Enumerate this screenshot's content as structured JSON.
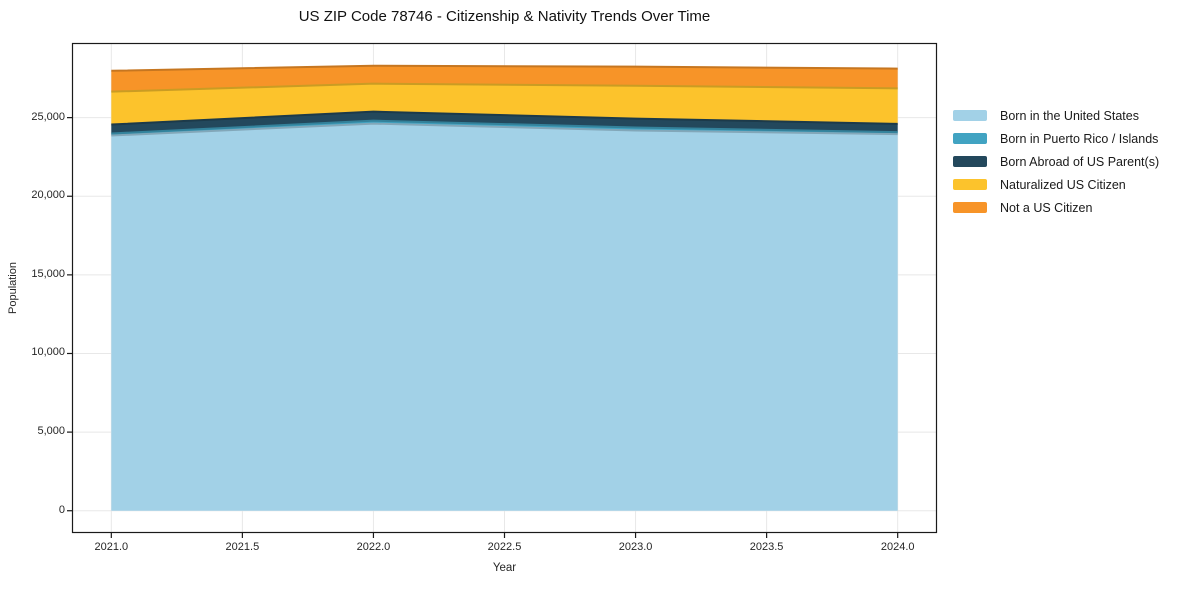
{
  "chart_data": {
    "type": "area",
    "stacked": true,
    "title": "US ZIP Code 78746 - Citizenship & Nativity Trends Over Time",
    "xlabel": "Year",
    "ylabel": "Population",
    "x": [
      2021,
      2022,
      2023,
      2024
    ],
    "series": [
      {
        "name": "Born in the United States",
        "color": "#a2d1e7",
        "values": [
          23860,
          24620,
          24180,
          23950
        ]
      },
      {
        "name": "Born in Puerto Rico / Islands",
        "color": "#41a3c2",
        "values": [
          130,
          190,
          190,
          130
        ]
      },
      {
        "name": "Born Abroad of US Parent(s)",
        "color": "#23485c",
        "values": [
          570,
          570,
          570,
          520
        ]
      },
      {
        "name": "Naturalized US Citizen",
        "color": "#fcc32c",
        "values": [
          2090,
          1780,
          2090,
          2260
        ]
      },
      {
        "name": "Not a US Citizen",
        "color": "#f79428",
        "values": [
          1330,
          1140,
          1210,
          1260
        ]
      }
    ],
    "xticks": {
      "values": [
        2021.0,
        2021.5,
        2022.0,
        2022.5,
        2023.0,
        2023.5,
        2024.0
      ],
      "labels": [
        "2021.0",
        "2021.5",
        "2022.0",
        "2022.5",
        "2023.0",
        "2023.5",
        "2024.0"
      ]
    },
    "yticks": {
      "values": [
        0,
        5000,
        10000,
        15000,
        20000,
        25000
      ],
      "labels": [
        "0",
        "5,000",
        "10,000",
        "15,000",
        "20,000",
        "25,000"
      ]
    },
    "xlim": [
      2020.85,
      2024.15
    ],
    "ylim": [
      -1416,
      29746
    ],
    "grid": true,
    "legend_position": "right"
  },
  "colors": {
    "grid": "#e8e8e8",
    "spine": "#1a1a1a",
    "text": "#262626",
    "background": "#ffffff"
  }
}
